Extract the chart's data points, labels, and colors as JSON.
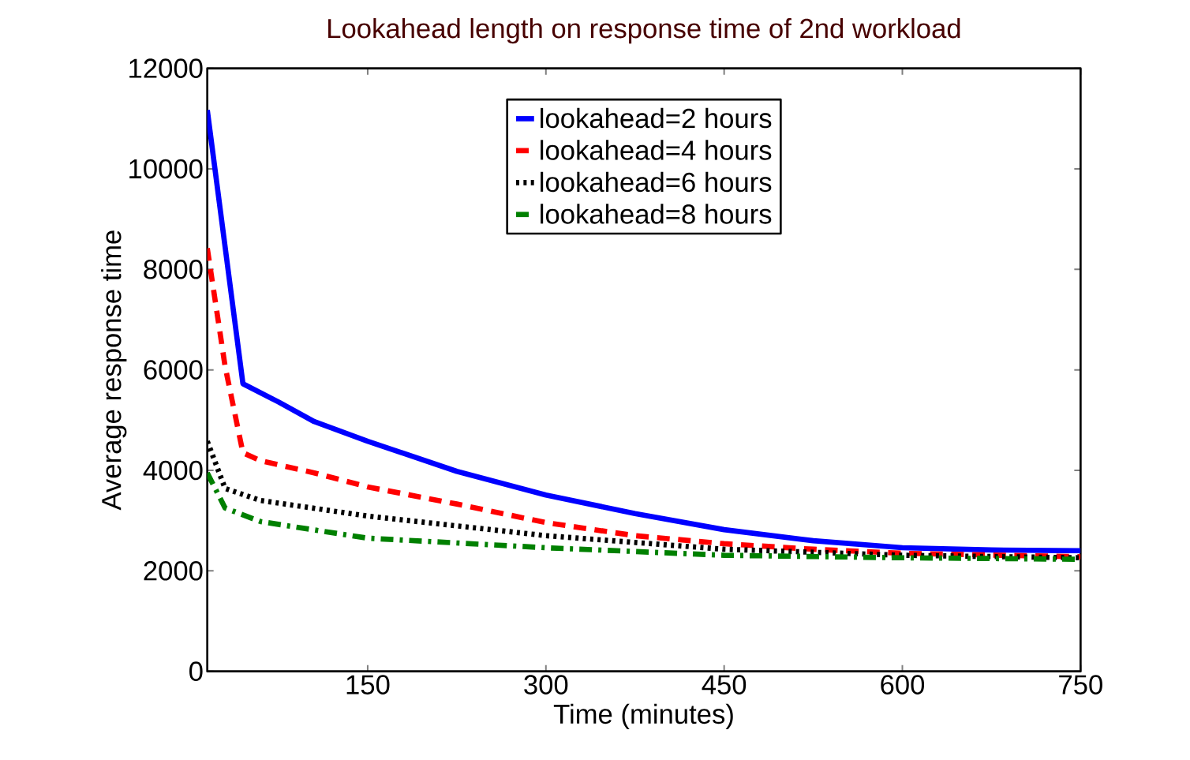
{
  "chart_data": {
    "type": "line",
    "title": "Lookahead length on response time of 2nd workload",
    "xlabel": "Time (minutes)",
    "ylabel": "Average response time",
    "xlim": [
      15,
      750
    ],
    "xticks": [
      150,
      300,
      450,
      600,
      750
    ],
    "ylim": [
      0,
      12000
    ],
    "yticks": [
      0,
      2000,
      4000,
      6000,
      8000,
      10000,
      12000
    ],
    "legend": "top",
    "grid": false,
    "marker": "none",
    "series": [
      {
        "name": "lookahead=2 hours",
        "color": "#0000ff",
        "line_style": "solid",
        "x": [
          15,
          45,
          75,
          105,
          150,
          225,
          300,
          375,
          450,
          525,
          600,
          675,
          750
        ],
        "values": [
          11170,
          5725,
          5360,
          4970,
          4580,
          3980,
          3510,
          3140,
          2820,
          2600,
          2460,
          2415,
          2400
        ]
      },
      {
        "name": "lookahead=4 hours",
        "color": "#ff0000",
        "line_style": "dashed",
        "x": [
          15,
          30,
          45,
          60,
          105,
          150,
          225,
          300,
          375,
          450,
          525,
          600,
          750
        ],
        "values": [
          8420,
          6070,
          4350,
          4190,
          3950,
          3670,
          3330,
          2960,
          2700,
          2540,
          2430,
          2350,
          2280
        ]
      },
      {
        "name": "lookahead=6 hours",
        "color": "#000000",
        "line_style": "dotted",
        "x": [
          15,
          30,
          60,
          150,
          300,
          450,
          600,
          750
        ],
        "values": [
          4580,
          3640,
          3400,
          3090,
          2700,
          2430,
          2310,
          2260
        ]
      },
      {
        "name": "lookahead=8 hours",
        "color": "#008000",
        "line_style": "dashdot",
        "x": [
          15,
          30,
          60,
          150,
          300,
          450,
          600,
          750
        ],
        "values": [
          3950,
          3250,
          2980,
          2650,
          2460,
          2310,
          2260,
          2230
        ]
      }
    ]
  }
}
